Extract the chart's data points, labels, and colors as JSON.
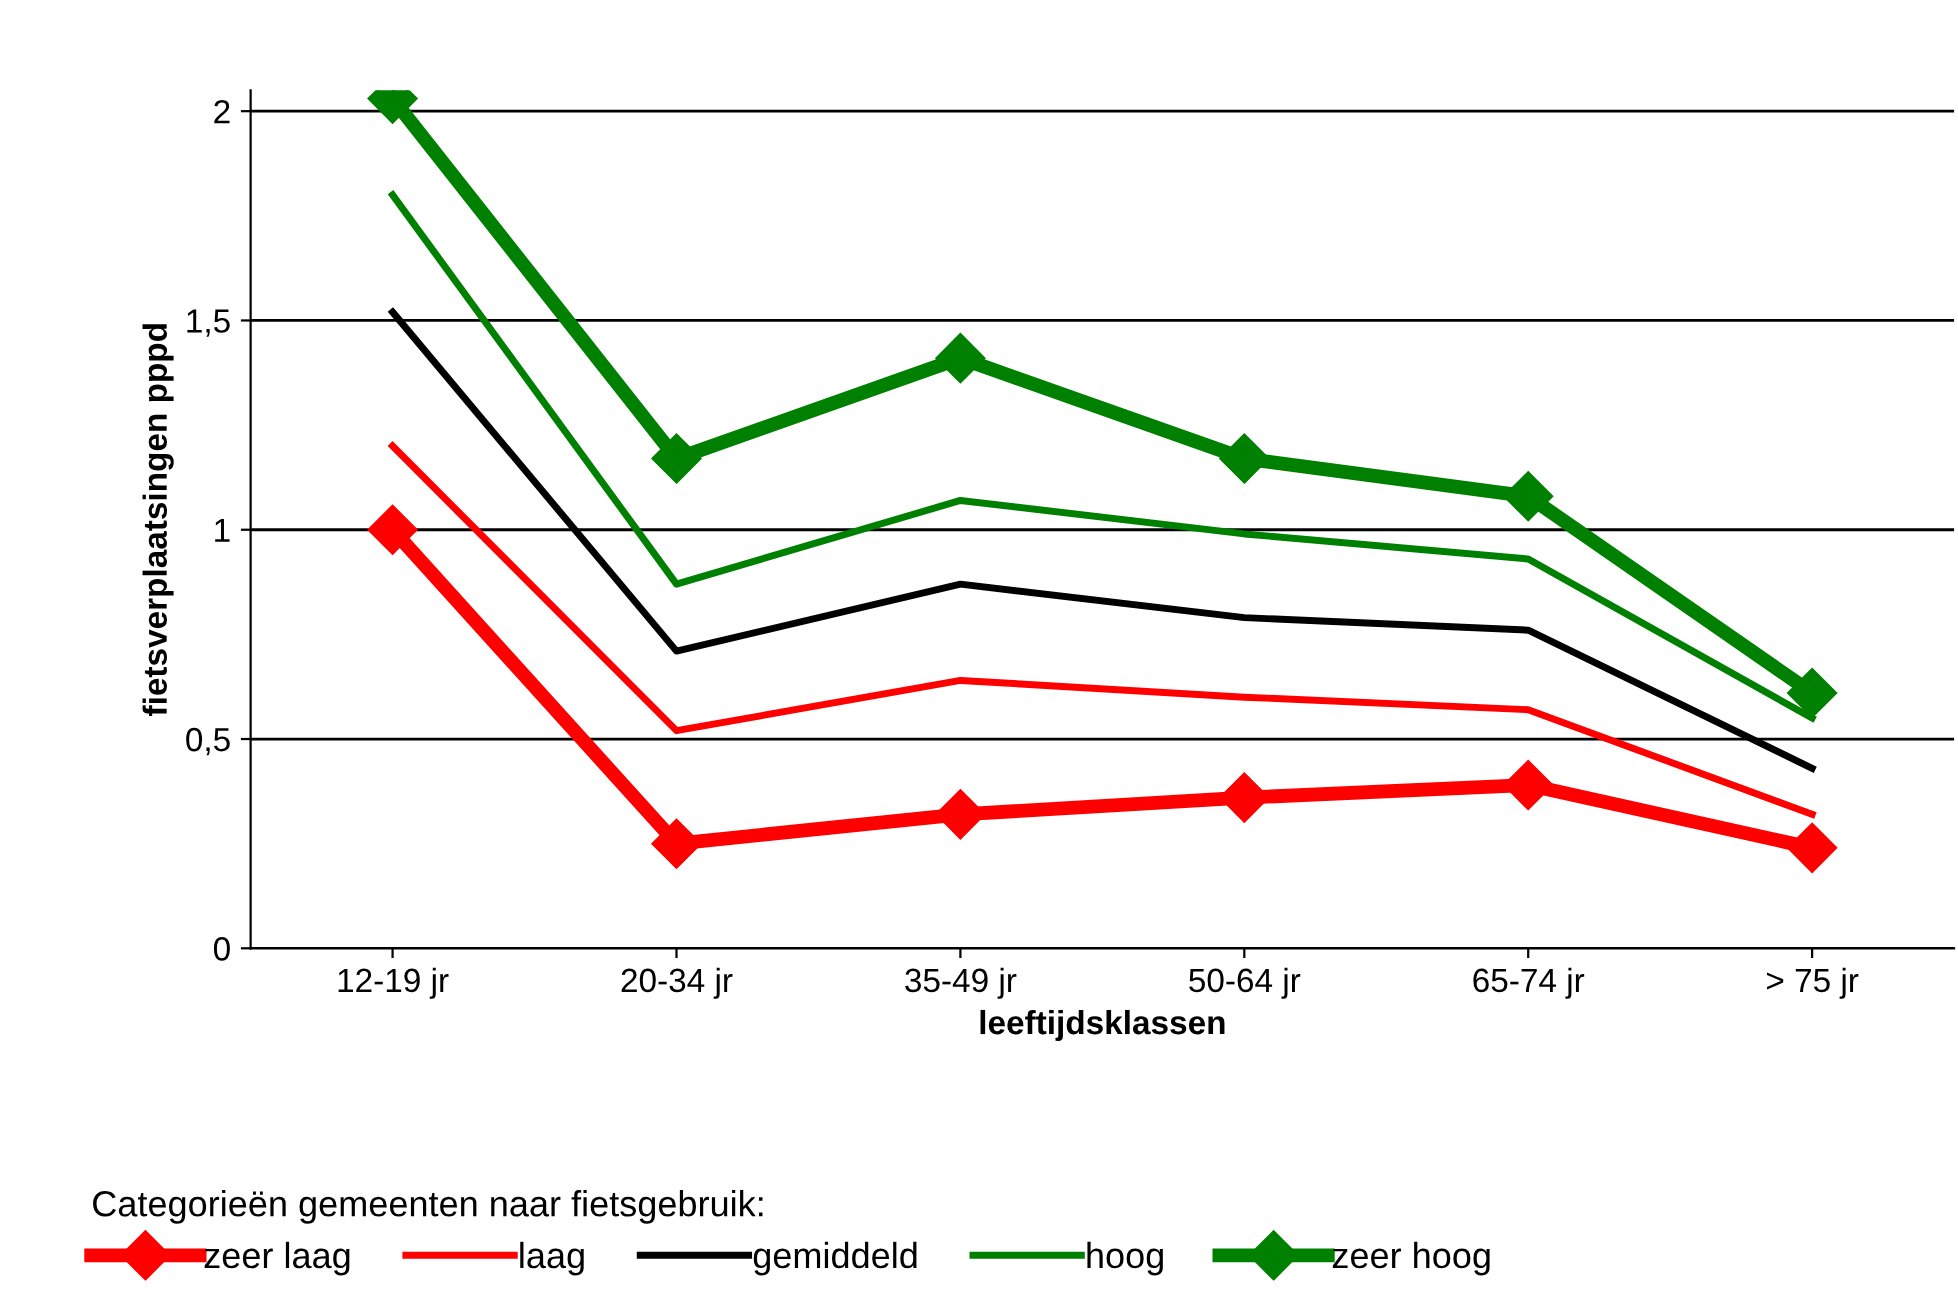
{
  "chart_data": {
    "type": "line",
    "xlabel": "leeftijdsklassen",
    "ylabel": "fietsverplaatsingen pppd",
    "categories": [
      "12-19 jr",
      "20-34 jr",
      "35-49 jr",
      "50-64 jr",
      "65-74 jr",
      "> 75 jr"
    ],
    "series": [
      {
        "name": "zeer laag",
        "color": "#ff0000",
        "marker": "diamond",
        "values": [
          1.0,
          0.25,
          0.32,
          0.36,
          0.39,
          0.24
        ]
      },
      {
        "name": "laag",
        "color": "#ff0000",
        "marker": "none",
        "values": [
          1.2,
          0.52,
          0.64,
          0.6,
          0.57,
          0.32
        ]
      },
      {
        "name": "gemiddeld",
        "color": "#000000",
        "marker": "none",
        "values": [
          1.52,
          0.71,
          0.87,
          0.79,
          0.76,
          0.43
        ]
      },
      {
        "name": "hoog",
        "color": "#008000",
        "marker": "none",
        "values": [
          1.8,
          0.87,
          1.07,
          0.99,
          0.93,
          0.55
        ]
      },
      {
        "name": "zeer hoog",
        "color": "#008000",
        "marker": "diamond",
        "values": [
          2.03,
          1.17,
          1.41,
          1.17,
          1.08,
          0.61
        ]
      }
    ],
    "ylim": [
      0,
      2.05
    ],
    "yticks": [
      0,
      {
        "value": 0.5,
        "label": "0,5"
      },
      1,
      {
        "value": 1.5,
        "label": "1,5"
      },
      2
    ],
    "grid": "y",
    "legend": "bottom",
    "legend_title": "Categorieën gemeenten naar fietsgebruik:",
    "line_style": "solid"
  }
}
